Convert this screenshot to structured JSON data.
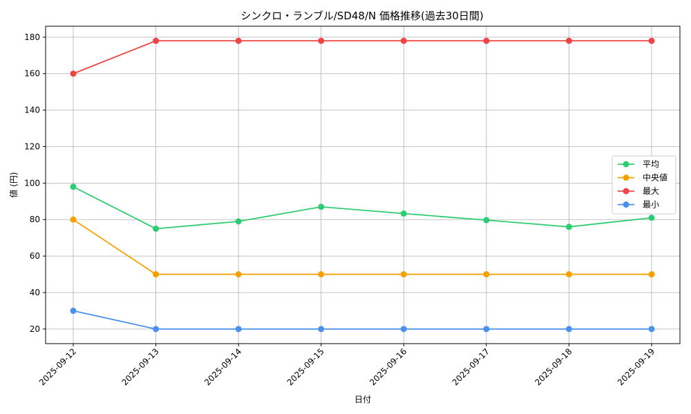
{
  "chart_data": {
    "type": "line",
    "title": "シンクロ・ランブル/SD48/N 価格推移(過去30日間)",
    "xlabel": "日付",
    "ylabel": "値 (円)",
    "categories": [
      "2025-09-12",
      "2025-09-13",
      "2025-09-14",
      "2025-09-15",
      "2025-09-16",
      "2025-09-17",
      "2025-09-18",
      "2025-09-19"
    ],
    "ylim": [
      12,
      186
    ],
    "yticks": [
      20,
      40,
      60,
      80,
      100,
      120,
      140,
      160,
      180
    ],
    "grid": true,
    "legend_position": "center-right",
    "series": [
      {
        "name": "平均",
        "color": "#2ecc71",
        "values": [
          98,
          75,
          79,
          87,
          83.3,
          79.7,
          76,
          81
        ]
      },
      {
        "name": "中央値",
        "color": "#f5a000",
        "values": [
          80,
          50,
          50,
          50,
          50,
          50,
          50,
          50
        ]
      },
      {
        "name": "最大",
        "color": "#ef4444",
        "values": [
          160,
          178,
          178,
          178,
          178,
          178,
          178,
          178
        ]
      },
      {
        "name": "最小",
        "color": "#4a90f0",
        "values": [
          30,
          20,
          20,
          20,
          20,
          20,
          20,
          20
        ]
      }
    ]
  }
}
